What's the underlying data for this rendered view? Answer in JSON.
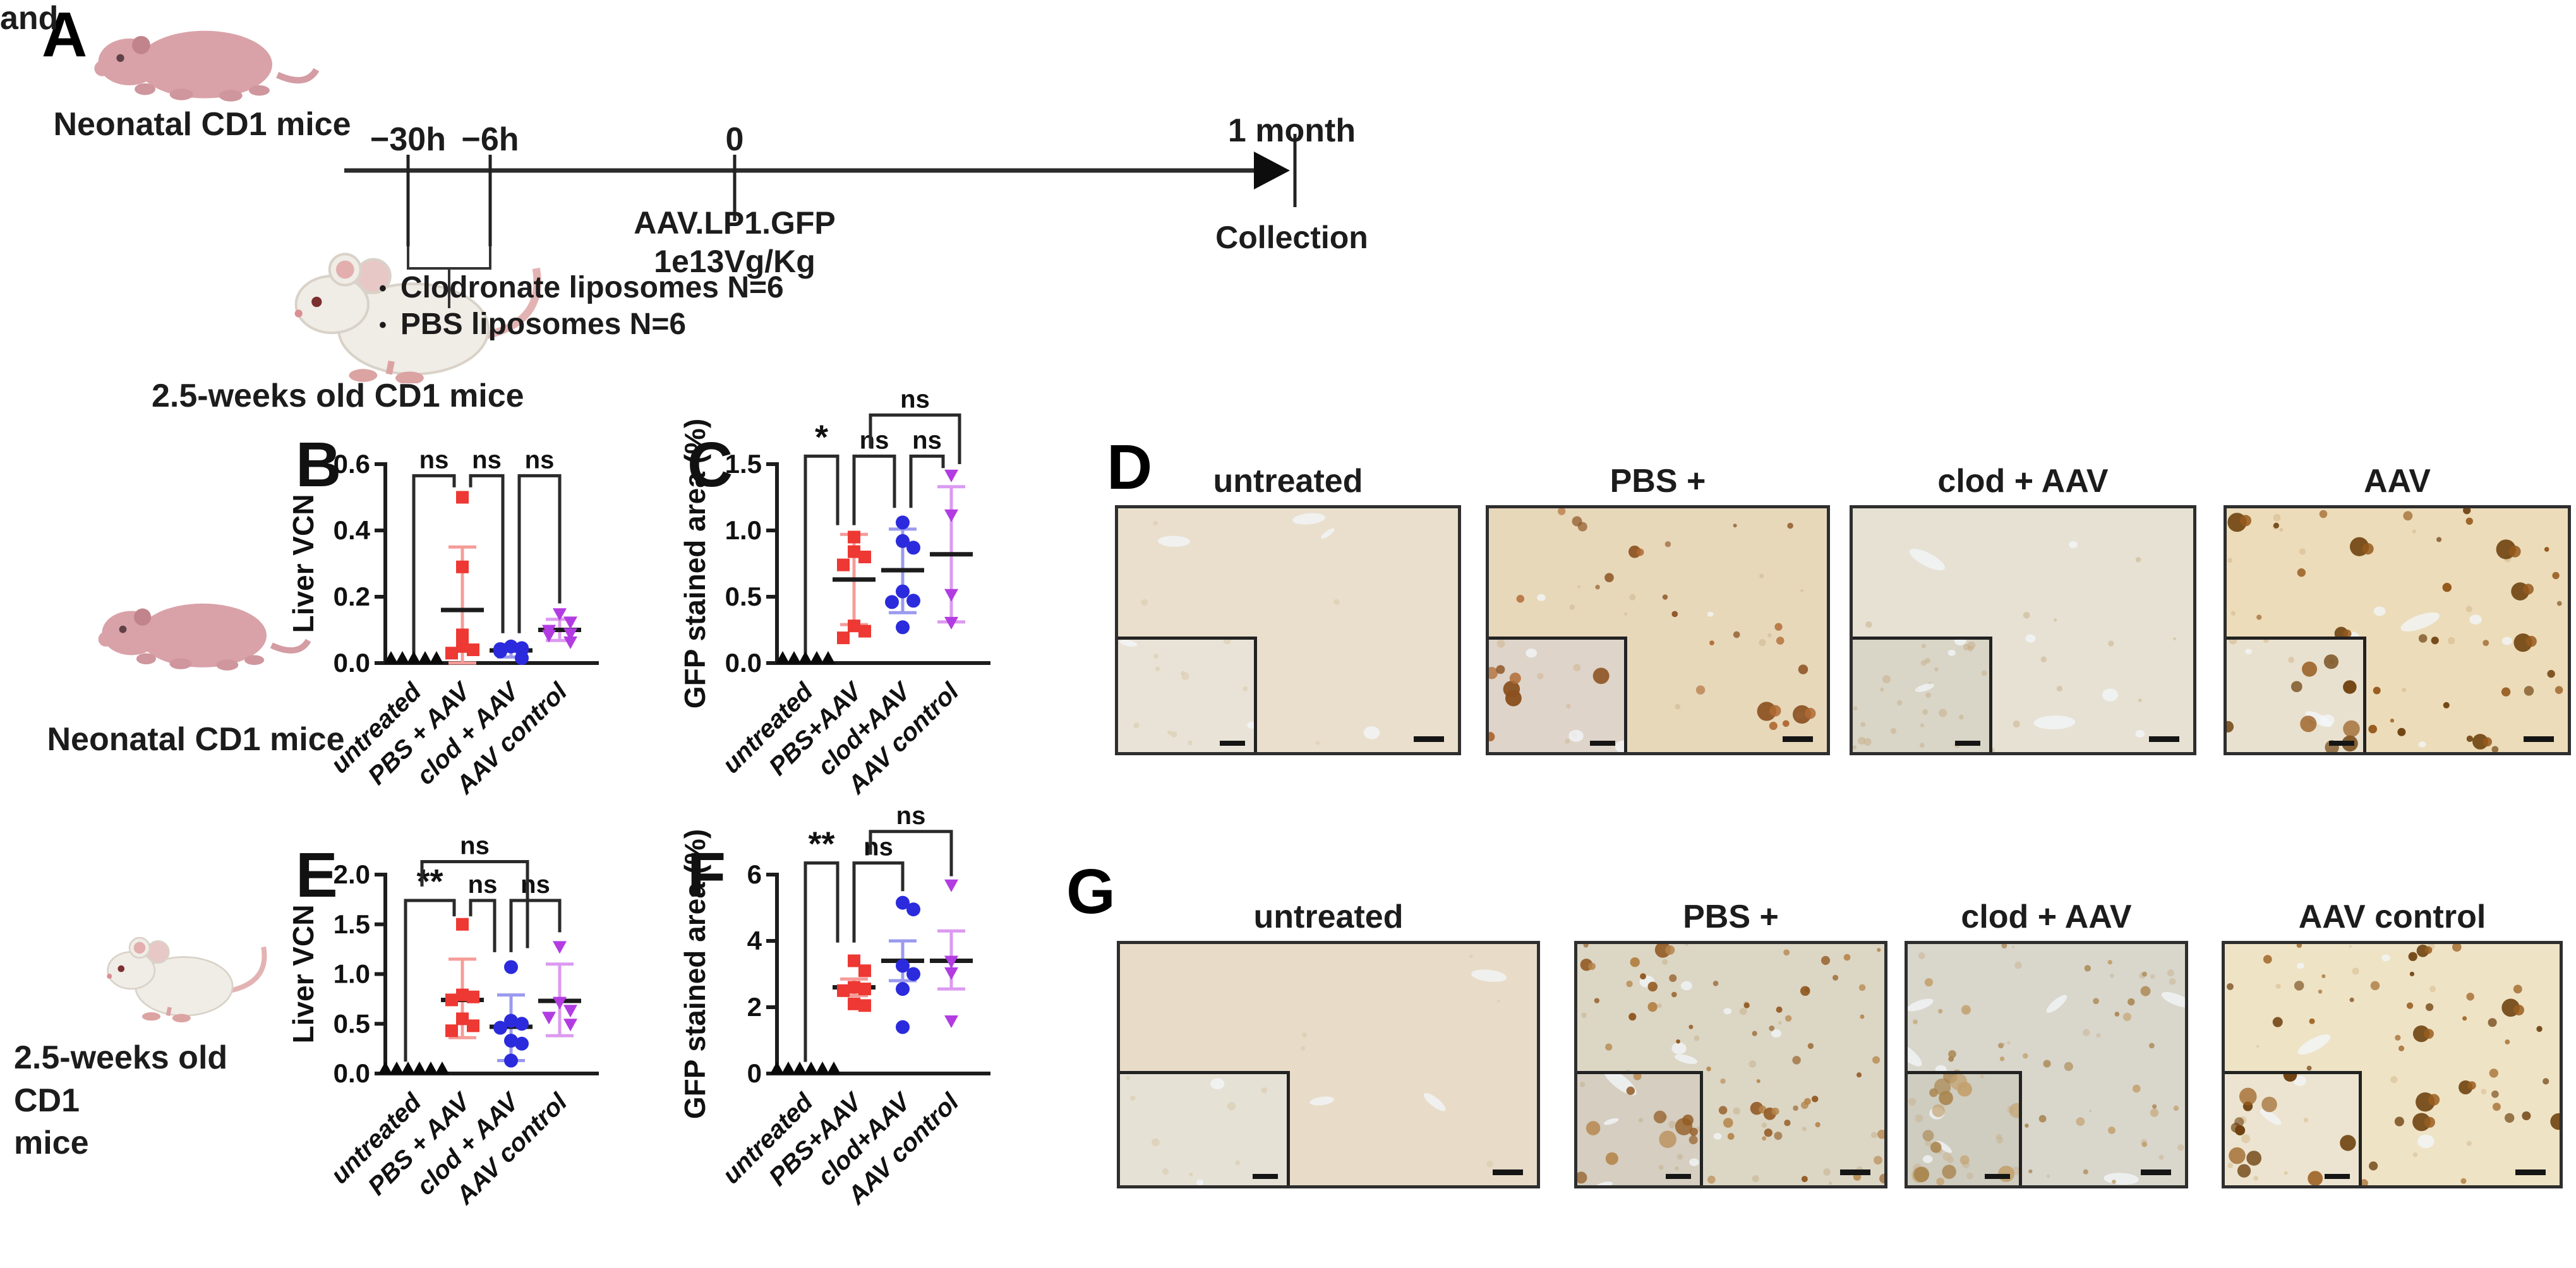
{
  "figure": {
    "panel_a": {
      "letter": "A",
      "neonatal_label": "Neonatal CD1 mice",
      "and_label": "and",
      "and_color": "#e8191c",
      "adult_label": "2.5-weeks old CD1 mice",
      "timeline": {
        "ticks": [
          "−30h",
          "−6h",
          "0",
          "1 month"
        ],
        "injection_line1": "AAV.LP1.GFP",
        "injection_line2": "1e13Vg/Kg",
        "collection_label": "Collection",
        "bullet_glyph": "•",
        "bullets": [
          "Clodronate liposomes N=6",
          "PBS liposomes N=6"
        ]
      }
    },
    "row_labels": {
      "neonatal": "Neonatal CD1 mice",
      "adult_line1": "2.5-weeks old CD1",
      "adult_line2": "mice"
    }
  },
  "chart_data": [
    {
      "type": "scatter",
      "letter": "B",
      "ylabel": "Liver VCN",
      "ymax": 0.6,
      "ylim": [
        0,
        0.6
      ],
      "yticks": [
        {
          "v": 0,
          "label": "0.0"
        },
        {
          "v": 0.2,
          "label": "0.2"
        },
        {
          "v": 0.4,
          "label": "0.4"
        },
        {
          "v": 0.6,
          "label": "0.6"
        }
      ],
      "categories": [
        "untreated",
        "PBS + AAV",
        "clod + AAV",
        "AAV control"
      ],
      "groups": [
        {
          "name": "untreated",
          "marker": "triangle-up",
          "color": "#0a0a0a",
          "values": [
            0,
            0,
            0,
            0,
            0
          ]
        },
        {
          "name": "PBS + AAV",
          "marker": "square",
          "color": "#ed3833",
          "err_color": "#f59c98",
          "values": [
            0.5,
            0.29,
            0.085,
            0.05,
            0.04,
            0.03
          ],
          "mean": 0.16,
          "err_lo": 0.0,
          "err_hi": 0.35
        },
        {
          "name": "clod + AAV",
          "marker": "circle",
          "color": "#2b2bdd",
          "err_color": "#9a9af0",
          "values": [
            0.05,
            0.045,
            0.042,
            0.04,
            0.035,
            0.015
          ],
          "mean": 0.038,
          "err_lo": 0.018,
          "err_hi": 0.056
        },
        {
          "name": "AAV control",
          "marker": "triangle-down",
          "color": "#b23ce2",
          "err_color": "#dc9af0",
          "values": [
            0.15,
            0.125,
            0.1,
            0.09,
            0.085,
            0.065
          ],
          "mean": 0.1,
          "err_lo": 0.068,
          "err_hi": 0.132
        }
      ],
      "brackets": [
        {
          "from": 0,
          "to": 1,
          "label": "ns",
          "h": 0.565,
          "drop_from": 0.02,
          "drop_to": 0.53
        },
        {
          "from": 1,
          "to": 2,
          "label": "ns",
          "h": 0.565,
          "drop_from": 0.53,
          "drop_to": 0.09
        },
        {
          "from": 2,
          "to": 3,
          "label": "ns",
          "h": 0.565,
          "drop_from": 0.09,
          "drop_to": 0.18
        }
      ]
    },
    {
      "type": "scatter",
      "letter": "C",
      "ylabel": "GFP stained area (%)",
      "ymax": 1.5,
      "ylim": [
        0,
        1.5
      ],
      "yticks": [
        {
          "v": 0,
          "label": "0.0"
        },
        {
          "v": 0.5,
          "label": "0.5"
        },
        {
          "v": 1.0,
          "label": "1.0"
        },
        {
          "v": 1.5,
          "label": "1.5"
        }
      ],
      "categories": [
        "untreated",
        "PBS+AAV",
        "clod+AAV",
        "AAV control"
      ],
      "groups": [
        {
          "name": "untreated",
          "marker": "triangle-up",
          "color": "#0a0a0a",
          "values": [
            0,
            0,
            0,
            0,
            0
          ]
        },
        {
          "name": "PBS+AAV",
          "marker": "square",
          "color": "#ed3833",
          "err_color": "#f59c98",
          "values": [
            0.95,
            0.84,
            0.8,
            0.74,
            0.28,
            0.24,
            0.19
          ],
          "mean": 0.63,
          "err_lo": 0.29,
          "err_hi": 0.97
        },
        {
          "name": "clod+AAV",
          "marker": "circle",
          "color": "#2b2bdd",
          "err_color": "#9a9af0",
          "values": [
            1.06,
            0.92,
            0.87,
            0.54,
            0.47,
            0.46,
            0.27
          ],
          "mean": 0.7,
          "err_lo": 0.38,
          "err_hi": 1.01
        },
        {
          "name": "AAV control",
          "marker": "triangle-down",
          "color": "#b23ce2",
          "err_color": "#dc9af0",
          "values": [
            1.42,
            1.12,
            0.52,
            0.31
          ],
          "mean": 0.82,
          "err_lo": 0.31,
          "err_hi": 1.33
        }
      ],
      "brackets": [
        {
          "from": 0,
          "to": 1,
          "label": "*",
          "h": 1.56,
          "drop_from": 0.05,
          "drop_to": 1.04
        },
        {
          "from": 1,
          "to": 2,
          "label": "ns",
          "h": 1.56,
          "drop_from": 1.04,
          "drop_to": 1.17
        },
        {
          "from": 2,
          "to": 3,
          "label": "ns",
          "h": 1.56,
          "drop_from": 1.17,
          "drop_to": 1.47
        },
        {
          "from": 1,
          "to": 3,
          "label": "ns",
          "h": 1.87,
          "drop_from": 1.62,
          "drop_to": 1.5
        }
      ]
    },
    {
      "type": "scatter",
      "letter": "E",
      "ylabel": "Liver VCN",
      "ymax": 2.0,
      "ylim": [
        0,
        2.0
      ],
      "yticks": [
        {
          "v": 0,
          "label": "0.0"
        },
        {
          "v": 0.5,
          "label": "0.5"
        },
        {
          "v": 1.0,
          "label": "1.0"
        },
        {
          "v": 1.5,
          "label": "1.5"
        },
        {
          "v": 2.0,
          "label": "2.0"
        }
      ],
      "categories": [
        "untreated",
        "PBS + AAV",
        "clod + AAV",
        "AAV control"
      ],
      "groups": [
        {
          "name": "untreated",
          "marker": "triangle-up",
          "color": "#0a0a0a",
          "values": [
            0,
            0,
            0,
            0,
            0,
            0
          ]
        },
        {
          "name": "PBS + AAV",
          "marker": "square",
          "color": "#ed3833",
          "err_color": "#f59c98",
          "values": [
            1.5,
            0.79,
            0.77,
            0.74,
            0.55,
            0.48,
            0.43
          ],
          "mean": 0.74,
          "err_lo": 0.36,
          "err_hi": 1.15
        },
        {
          "name": "clod + AAV",
          "marker": "circle",
          "color": "#2b2bdd",
          "err_color": "#9a9af0",
          "values": [
            1.07,
            0.53,
            0.5,
            0.46,
            0.33,
            0.3,
            0.13
          ],
          "mean": 0.47,
          "err_lo": 0.13,
          "err_hi": 0.79
        },
        {
          "name": "AAV control",
          "marker": "triangle-down",
          "color": "#b23ce2",
          "err_color": "#dc9af0",
          "values": [
            1.28,
            0.72,
            0.64,
            0.57,
            0.5
          ],
          "mean": 0.73,
          "err_lo": 0.38,
          "err_hi": 1.1
        }
      ],
      "brackets": [
        {
          "from": 0,
          "to": 1,
          "label": "**",
          "h": 1.74,
          "drop_from": 0.12,
          "drop_to": 1.58
        },
        {
          "from": 1,
          "to": 2,
          "label": "ns",
          "h": 1.74,
          "drop_from": 1.58,
          "drop_to": 1.22
        },
        {
          "from": 2,
          "to": 3,
          "label": "ns",
          "h": 1.74,
          "drop_from": 1.22,
          "drop_to": 1.42
        },
        {
          "from": 0,
          "to": 2,
          "label": "ns",
          "h": 2.13,
          "drop_from": 1.88,
          "drop_to": 1.26
        }
      ]
    },
    {
      "type": "scatter",
      "letter": "F",
      "ylabel": "GFP stained area (%)",
      "ymax": 6,
      "ylim": [
        0,
        6
      ],
      "yticks": [
        {
          "v": 0,
          "label": "0"
        },
        {
          "v": 2,
          "label": "2"
        },
        {
          "v": 4,
          "label": "4"
        },
        {
          "v": 6,
          "label": "6"
        }
      ],
      "categories": [
        "untreated",
        "PBS+AAV",
        "clod+AAV",
        "AAV control"
      ],
      "groups": [
        {
          "name": "untreated",
          "marker": "triangle-up",
          "color": "#0a0a0a",
          "values": [
            0,
            0,
            0,
            0,
            0,
            0
          ]
        },
        {
          "name": "PBS+AAV",
          "marker": "square",
          "color": "#ed3833",
          "err_color": "#f59c98",
          "values": [
            3.4,
            3.1,
            2.6,
            2.55,
            2.5,
            2.1,
            2.05
          ],
          "mean": 2.6,
          "err_lo": 2.35,
          "err_hi": 2.85
        },
        {
          "name": "clod+AAV",
          "marker": "circle",
          "color": "#2b2bdd",
          "err_color": "#9a9af0",
          "values": [
            5.15,
            4.95,
            3.25,
            3.0,
            2.55,
            1.4
          ],
          "mean": 3.4,
          "err_lo": 2.8,
          "err_hi": 4.0
        },
        {
          "name": "AAV control",
          "marker": "triangle-down",
          "color": "#b23ce2",
          "err_color": "#dc9af0",
          "values": [
            5.7,
            3.4,
            3.05,
            1.6
          ],
          "mean": 3.4,
          "err_lo": 2.55,
          "err_hi": 4.3
        }
      ],
      "brackets": [
        {
          "from": 0,
          "to": 1,
          "label": "**",
          "h": 6.35,
          "drop_from": 0.35,
          "drop_to": 3.95
        },
        {
          "from": 1,
          "to": 2,
          "label": "ns",
          "h": 6.35,
          "drop_from": 3.95,
          "drop_to": 5.5
        },
        {
          "from": 1,
          "to": 3,
          "label": "ns",
          "h": 7.3,
          "drop_from": 6.6,
          "drop_to": 5.95
        }
      ]
    }
  ],
  "histology": {
    "d": {
      "letter": "D",
      "panels": [
        {
          "label": "untreated",
          "base": "#eadfcd",
          "inset_base": "#e9e3d7",
          "spots": 0,
          "spot_color": "#a8672c",
          "spot_dark": "#7c4314",
          "big": 0,
          "faint": 6,
          "faint_color": "#d8c7a6",
          "holes": 4,
          "inset_spots": 0,
          "inset_faint": 10
        },
        {
          "label": "PBS +",
          "base": "#e7d8ba",
          "inset_base": "#ded4c9",
          "spots": 20,
          "spot_color": "#b06a33",
          "spot_dark": "#8a4f1e",
          "big": 3,
          "faint": 10,
          "faint_color": "#cdb18a",
          "holes": 5,
          "inset_spots": 7,
          "inset_faint": 6
        },
        {
          "label": "clod + AAV",
          "base": "#e6e1d3",
          "inset_base": "#d9d5c7",
          "spots": 0,
          "spot_color": "#b98d54",
          "spot_dark": "#a07038",
          "big": 0,
          "faint": 16,
          "faint_color": "#c7ae85",
          "holes": 6,
          "inset_spots": 0,
          "inset_faint": 26
        },
        {
          "label": "AAV",
          "base": "#ecdcba",
          "inset_base": "#e9e1cf",
          "spots": 34,
          "spot_color": "#96591c",
          "spot_dark": "#6f4210",
          "big": 7,
          "faint": 12,
          "faint_color": "#d2b184",
          "holes": 6,
          "inset_spots": 9,
          "inset_faint": 5
        }
      ]
    },
    "g": {
      "letter": "G",
      "panels": [
        {
          "label": "untreated",
          "base": "#e8dcc8",
          "inset_base": "#e6e1d5",
          "spots": 0,
          "spot_color": "#a8672c",
          "spot_dark": "#7c4314",
          "big": 0,
          "faint": 5,
          "faint_color": "#d6c5a4",
          "holes": 3,
          "inset_spots": 0,
          "inset_faint": 8
        },
        {
          "label": "PBS +",
          "base": "#dcd6c5",
          "inset_base": "#d5cec1",
          "spots": 64,
          "spot_color": "#b5854a",
          "spot_dark": "#925a22",
          "big": 4,
          "faint": 20,
          "faint_color": "#c4ad86",
          "holes": 8,
          "inset_spots": 11,
          "inset_faint": 8
        },
        {
          "label": "clod + AAV",
          "base": "#d9d6cc",
          "inset_base": "#cfccc0",
          "spots": 40,
          "spot_color": "#c3a26f",
          "spot_dark": "#a9854e",
          "big": 0,
          "faint": 22,
          "faint_color": "#c9b18d",
          "holes": 7,
          "inset_spots": 16,
          "inset_faint": 14
        },
        {
          "label": "AAV control",
          "base": "#efe3c6",
          "inset_base": "#ece4d0",
          "spots": 42,
          "spot_color": "#9a5e1e",
          "spot_dark": "#6f4210",
          "big": 8,
          "faint": 14,
          "faint_color": "#d4b888",
          "holes": 6,
          "inset_spots": 12,
          "inset_faint": 6
        }
      ]
    }
  }
}
